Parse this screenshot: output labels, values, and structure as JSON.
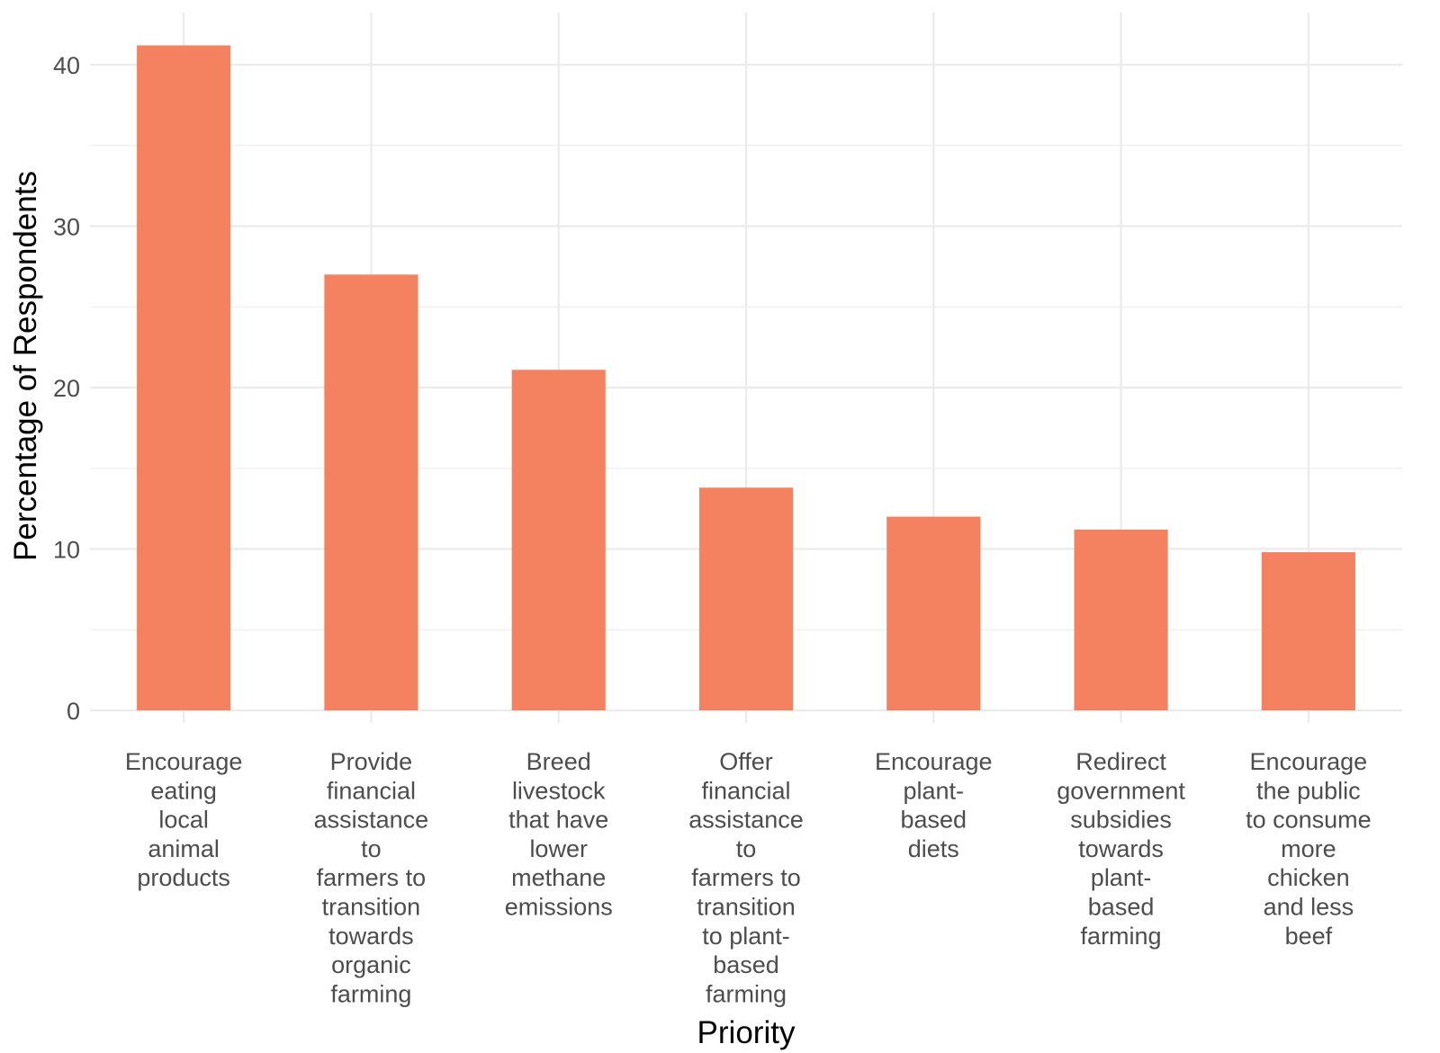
{
  "chart_data": {
    "type": "bar",
    "xlabel": "Priority",
    "ylabel": "Percentage of Respondents",
    "ylim": [
      0,
      42.5
    ],
    "yticks": [
      0,
      10,
      20,
      30,
      40
    ],
    "grid": true,
    "bar_color": "#F4815F",
    "categories": [
      [
        "Encourage",
        "eating",
        "local",
        "animal",
        "products"
      ],
      [
        "Provide",
        "financial",
        "assistance",
        "to",
        "farmers to",
        "transition",
        "towards",
        "organic",
        "farming"
      ],
      [
        "Breed",
        "livestock",
        "that have",
        "lower",
        "methane",
        "emissions"
      ],
      [
        "Offer",
        "financial",
        "assistance",
        "to",
        "farmers to",
        "transition",
        "to plant-",
        "based",
        "farming"
      ],
      [
        "Encourage",
        "plant-",
        "based",
        "diets"
      ],
      [
        "Redirect",
        "government",
        "subsidies",
        "towards",
        "plant-",
        "based",
        "farming"
      ],
      [
        "Encourage",
        "the public",
        "to consume",
        "more",
        "chicken",
        "and less",
        "beef"
      ]
    ],
    "values": [
      41.2,
      27.0,
      21.1,
      13.8,
      12.0,
      11.2,
      9.8
    ]
  }
}
